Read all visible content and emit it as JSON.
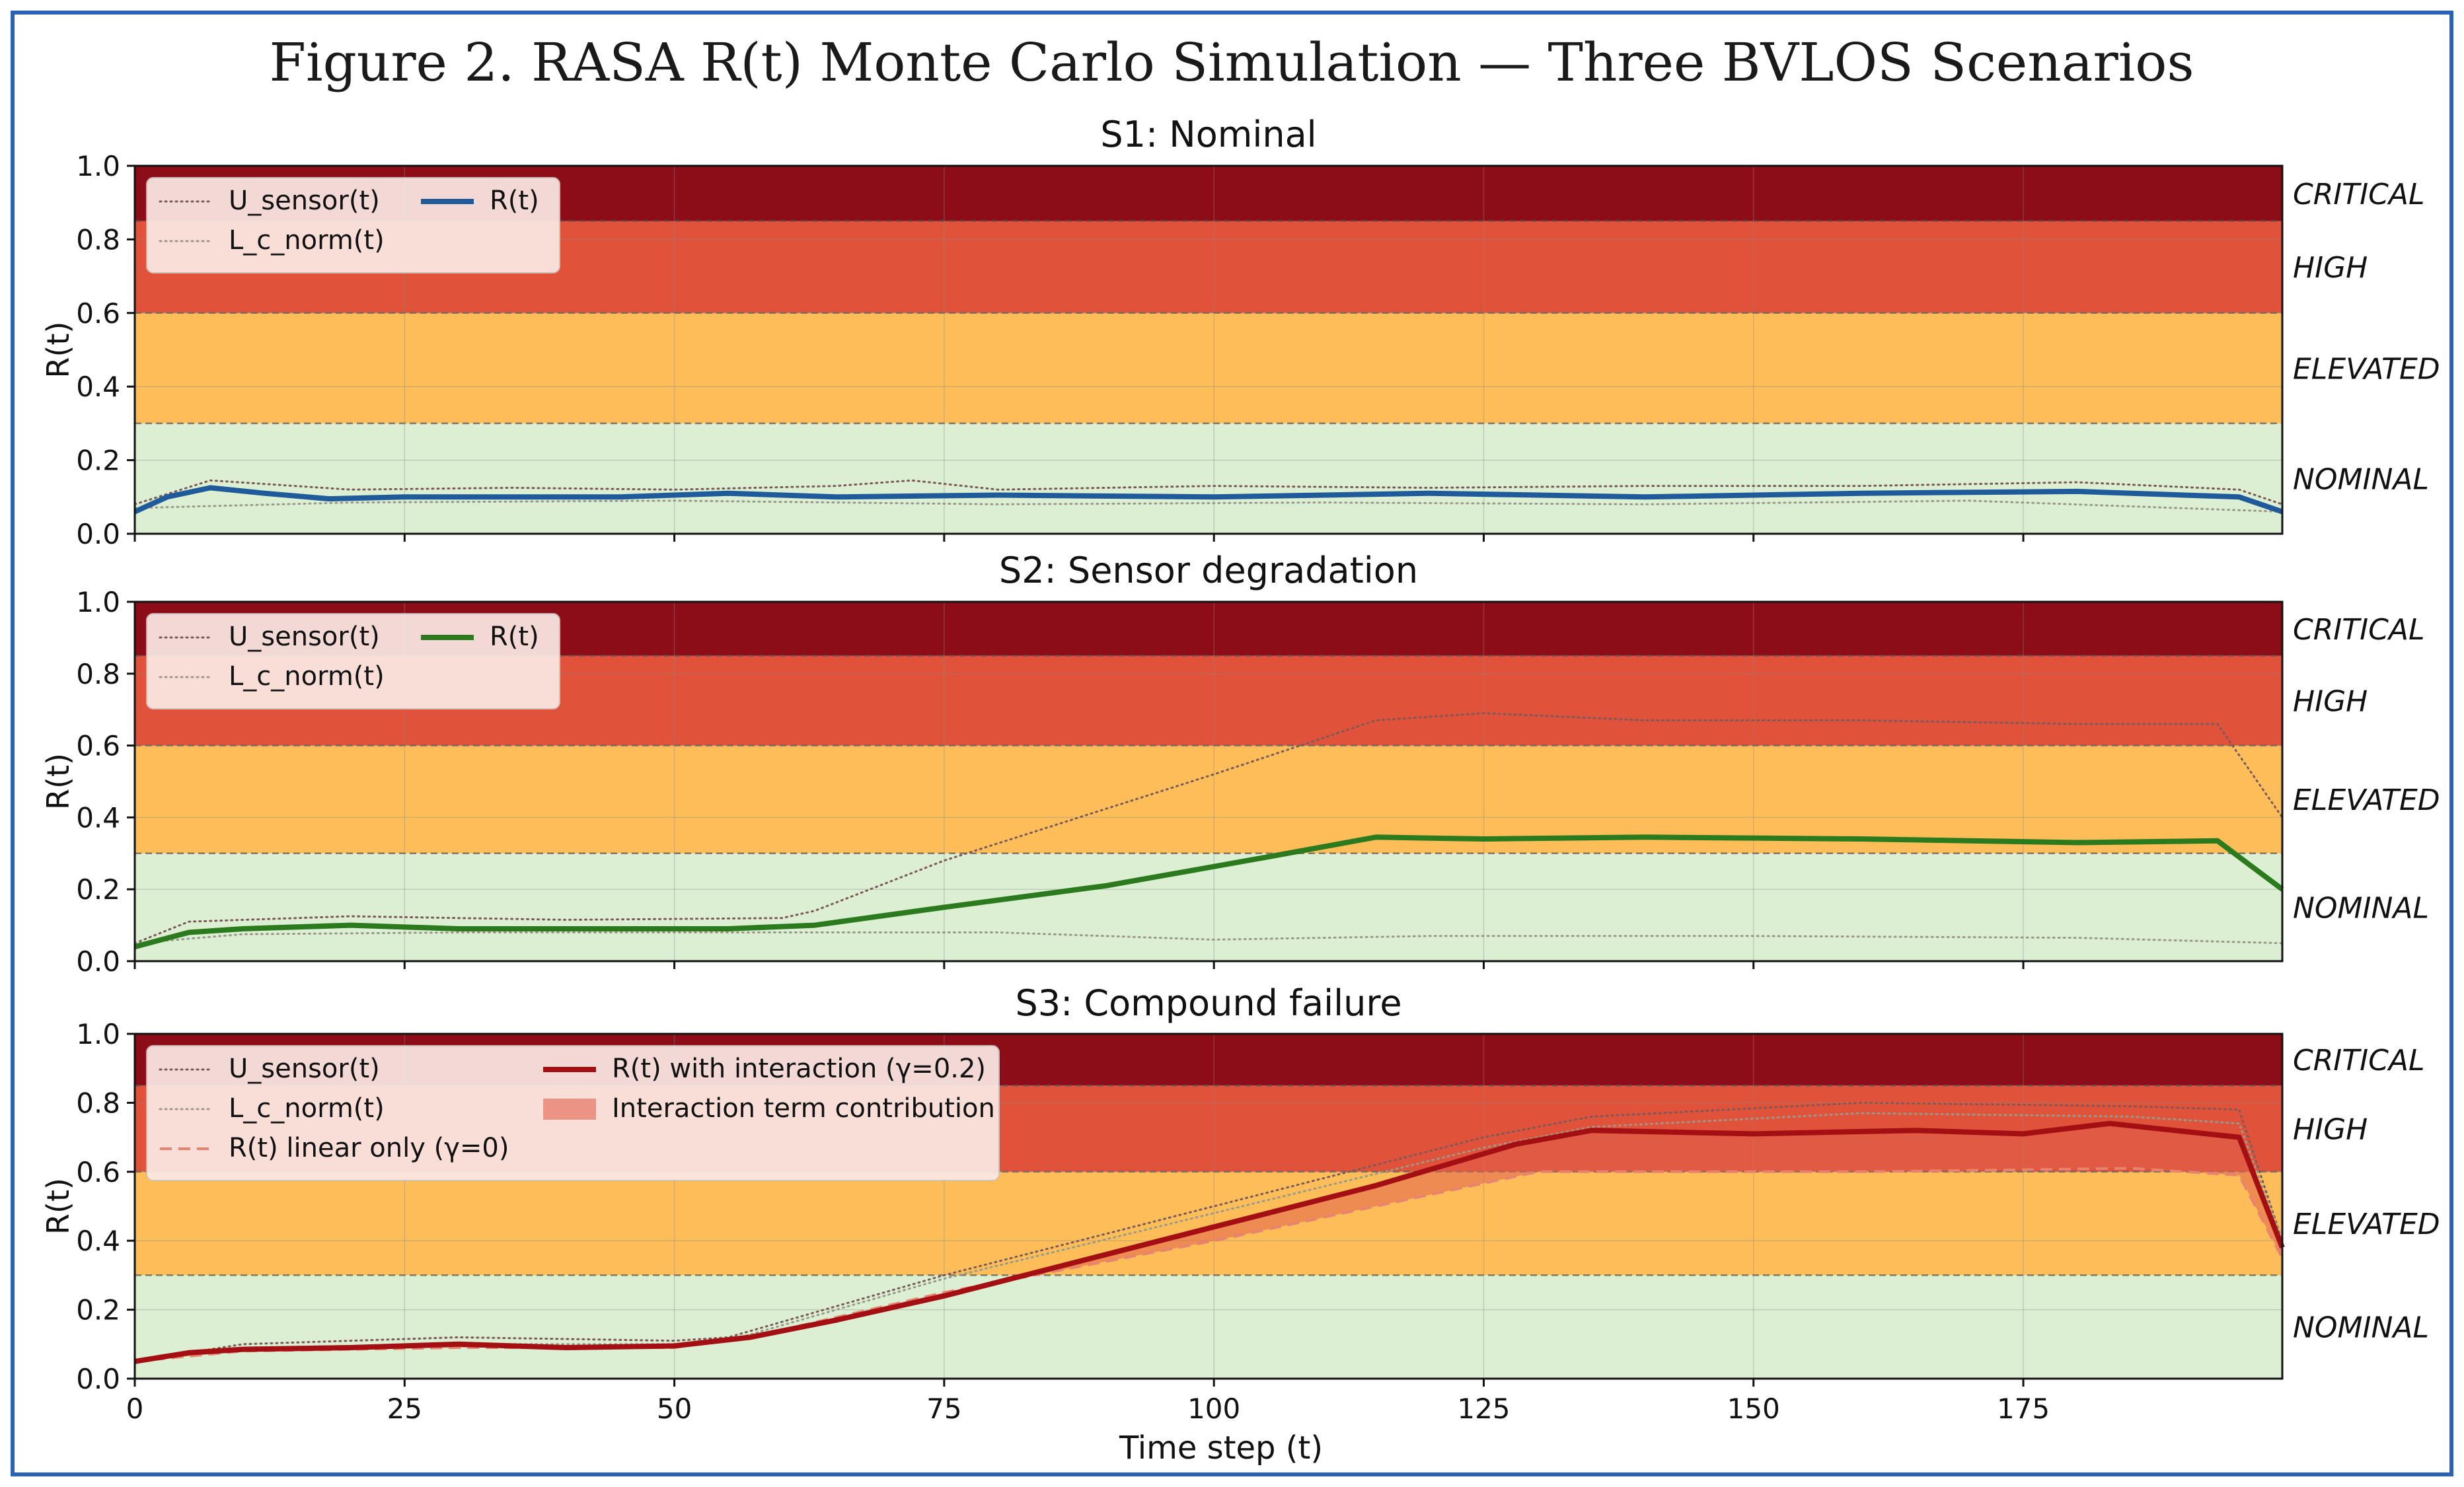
{
  "figure": {
    "title": "Figure 2. RASA R(t) Monte Carlo Simulation — Three BVLOS Scenarios",
    "x_label": "Time step (t)",
    "x_ticks": [
      "0",
      "25",
      "50",
      "75",
      "100",
      "125",
      "150",
      "175"
    ],
    "y_ticks": [
      "0.0",
      "0.2",
      "0.4",
      "0.6",
      "0.8",
      "1.0"
    ],
    "y_label": "R(t)"
  },
  "colors": {
    "frame": "#2b62b5",
    "zone_nominal": "#dcefd3",
    "zone_elevated": "#fdbd59",
    "zone_high": "#e0533a",
    "zone_critical": "#8c0d17",
    "legend_bg": "#fbe9e5",
    "s1_line": "#1f5b9a",
    "s2_line": "#2b7a1e",
    "s3_line": "#a30f12",
    "s3_linear": "#e8836f",
    "s3_fill": "#e2634c",
    "sensor_dots": "#7a5a5a",
    "lc_dots": "#9a9a8a"
  },
  "chart_data": [
    {
      "type": "line",
      "title": "S1: Nominal",
      "xlabel": "",
      "ylabel": "R(t)",
      "xlim": [
        0,
        199
      ],
      "ylim": [
        0,
        1
      ],
      "risk_zones": [
        {
          "label": "NOMINAL",
          "from": 0.0,
          "to": 0.3
        },
        {
          "label": "ELEVATED",
          "from": 0.3,
          "to": 0.6
        },
        {
          "label": "HIGH",
          "from": 0.6,
          "to": 0.85
        },
        {
          "label": "CRITICAL",
          "from": 0.85,
          "to": 1.0
        }
      ],
      "legend": {
        "position": "top-left",
        "entries": [
          "U_sensor(t)",
          "R(t)",
          "L_c_norm(t)"
        ]
      },
      "series": [
        {
          "name": "U_sensor(t)",
          "x": [
            0,
            7,
            20,
            35,
            50,
            65,
            72,
            80,
            100,
            120,
            140,
            160,
            180,
            195,
            199
          ],
          "values": [
            0.08,
            0.145,
            0.12,
            0.125,
            0.12,
            0.13,
            0.145,
            0.12,
            0.13,
            0.125,
            0.13,
            0.13,
            0.14,
            0.12,
            0.08
          ]
        },
        {
          "name": "L_c_norm(t)",
          "x": [
            0,
            20,
            50,
            80,
            110,
            140,
            170,
            199
          ],
          "values": [
            0.07,
            0.085,
            0.09,
            0.08,
            0.085,
            0.08,
            0.09,
            0.06
          ]
        },
        {
          "name": "R(t)",
          "x": [
            0,
            3,
            7,
            12,
            18,
            25,
            35,
            45,
            55,
            65,
            80,
            100,
            120,
            140,
            160,
            180,
            195,
            199
          ],
          "values": [
            0.06,
            0.1,
            0.125,
            0.11,
            0.095,
            0.1,
            0.1,
            0.1,
            0.11,
            0.1,
            0.105,
            0.1,
            0.11,
            0.1,
            0.11,
            0.115,
            0.1,
            0.06
          ]
        }
      ]
    },
    {
      "type": "line",
      "title": "S2: Sensor degradation",
      "xlabel": "",
      "ylabel": "R(t)",
      "xlim": [
        0,
        199
      ],
      "ylim": [
        0,
        1
      ],
      "risk_zones": [
        {
          "label": "NOMINAL",
          "from": 0.0,
          "to": 0.3
        },
        {
          "label": "ELEVATED",
          "from": 0.3,
          "to": 0.6
        },
        {
          "label": "HIGH",
          "from": 0.6,
          "to": 0.85
        },
        {
          "label": "CRITICAL",
          "from": 0.85,
          "to": 1.0
        }
      ],
      "legend": {
        "position": "top-left",
        "entries": [
          "U_sensor(t)",
          "R(t)",
          "L_c_norm(t)"
        ]
      },
      "series": [
        {
          "name": "U_sensor(t)",
          "x": [
            0,
            5,
            20,
            40,
            60,
            63,
            75,
            100,
            115,
            125,
            140,
            160,
            180,
            193,
            199
          ],
          "values": [
            0.05,
            0.11,
            0.125,
            0.115,
            0.12,
            0.14,
            0.28,
            0.52,
            0.67,
            0.69,
            0.67,
            0.67,
            0.66,
            0.66,
            0.4
          ]
        },
        {
          "name": "L_c_norm(t)",
          "x": [
            0,
            10,
            30,
            60,
            80,
            100,
            120,
            150,
            180,
            199
          ],
          "values": [
            0.05,
            0.075,
            0.08,
            0.08,
            0.08,
            0.06,
            0.07,
            0.07,
            0.065,
            0.05
          ]
        },
        {
          "name": "R(t)",
          "x": [
            0,
            5,
            10,
            20,
            30,
            40,
            55,
            63,
            75,
            90,
            105,
            115,
            125,
            140,
            160,
            180,
            193,
            199
          ],
          "values": [
            0.04,
            0.08,
            0.09,
            0.1,
            0.09,
            0.09,
            0.09,
            0.1,
            0.15,
            0.21,
            0.29,
            0.345,
            0.34,
            0.345,
            0.34,
            0.33,
            0.335,
            0.2
          ]
        }
      ]
    },
    {
      "type": "line",
      "title": "S3: Compound failure",
      "xlabel": "Time step (t)",
      "ylabel": "R(t)",
      "xlim": [
        0,
        199
      ],
      "ylim": [
        0,
        1
      ],
      "risk_zones": [
        {
          "label": "NOMINAL",
          "from": 0.0,
          "to": 0.3
        },
        {
          "label": "ELEVATED",
          "from": 0.3,
          "to": 0.6
        },
        {
          "label": "HIGH",
          "from": 0.6,
          "to": 0.85
        },
        {
          "label": "CRITICAL",
          "from": 0.85,
          "to": 1.0
        }
      ],
      "legend": {
        "position": "top-left",
        "entries": [
          "U_sensor(t)",
          "R(t) with interaction (γ=0.2)",
          "L_c_norm(t)",
          "Interaction term contribution",
          "R(t) linear only (γ=0)"
        ]
      },
      "series": [
        {
          "name": "U_sensor(t)",
          "x": [
            0,
            10,
            30,
            50,
            55,
            75,
            100,
            125,
            135,
            160,
            185,
            195,
            199
          ],
          "values": [
            0.05,
            0.1,
            0.12,
            0.11,
            0.12,
            0.3,
            0.5,
            0.7,
            0.76,
            0.8,
            0.79,
            0.78,
            0.4
          ]
        },
        {
          "name": "L_c_norm(t)",
          "x": [
            0,
            10,
            30,
            50,
            55,
            75,
            100,
            125,
            135,
            160,
            185,
            195,
            199
          ],
          "values": [
            0.05,
            0.09,
            0.1,
            0.1,
            0.11,
            0.29,
            0.48,
            0.67,
            0.73,
            0.77,
            0.76,
            0.74,
            0.4
          ]
        },
        {
          "name": "R(t) linear only (γ=0)",
          "x": [
            0,
            10,
            30,
            50,
            57,
            75,
            100,
            130,
            160,
            185,
            195,
            199
          ],
          "values": [
            0.05,
            0.08,
            0.09,
            0.09,
            0.12,
            0.25,
            0.4,
            0.6,
            0.6,
            0.61,
            0.59,
            0.35
          ]
        },
        {
          "name": "R(t) with interaction (γ=0.2)",
          "x": [
            0,
            5,
            10,
            20,
            30,
            40,
            50,
            57,
            65,
            75,
            100,
            115,
            128,
            135,
            150,
            165,
            175,
            183,
            195,
            199
          ],
          "values": [
            0.05,
            0.075,
            0.085,
            0.09,
            0.1,
            0.09,
            0.095,
            0.12,
            0.17,
            0.24,
            0.44,
            0.56,
            0.68,
            0.72,
            0.71,
            0.72,
            0.71,
            0.74,
            0.7,
            0.38
          ]
        }
      ]
    }
  ]
}
